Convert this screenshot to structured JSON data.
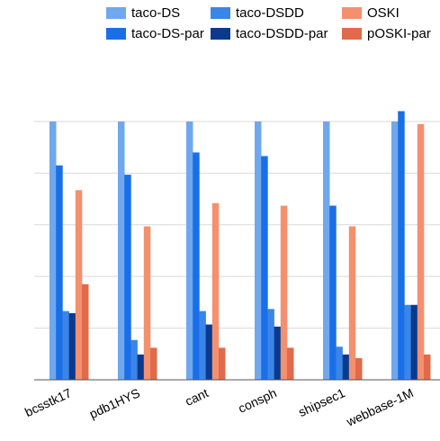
{
  "chart_data": {
    "type": "bar",
    "categories": [
      "bcsstk17",
      "pdb1HYS",
      "cant",
      "consph",
      "shipsec1",
      "webbase-1M"
    ],
    "series": [
      {
        "name": "taco-DS",
        "color": "#6fa8ee",
        "values": [
          5.0,
          5.0,
          5.0,
          5.0,
          5.0,
          5.0
        ]
      },
      {
        "name": "taco-DS-par",
        "color": "#1a6fe8",
        "values": [
          4.15,
          3.97,
          4.4,
          4.33,
          3.37,
          5.2
        ]
      },
      {
        "name": "taco-DSDD",
        "color": "#3a86e8",
        "values": [
          1.33,
          0.77,
          1.33,
          1.37,
          0.64,
          1.45
        ]
      },
      {
        "name": "taco-DSDD-par",
        "color": "#0a3a8e",
        "values": [
          1.29,
          0.49,
          1.07,
          1.03,
          0.49,
          1.45
        ]
      },
      {
        "name": "OSKI",
        "color": "#f4906e",
        "values": [
          3.67,
          2.97,
          3.42,
          3.37,
          2.97,
          4.95
        ]
      },
      {
        "name": "pOSKI-par",
        "color": "#e06a4a",
        "values": [
          1.85,
          0.62,
          0.62,
          0.62,
          0.42,
          0.49
        ]
      }
    ],
    "bar_order": [
      "taco-DS",
      "taco-DS-par",
      "taco-DSDD",
      "taco-DSDD-par",
      "OSKI",
      "pOSKI-par"
    ],
    "legend_order": [
      "taco-DS",
      "taco-DSDD",
      "OSKI",
      "taco-DS-par",
      "taco-DSDD-par",
      "pOSKI-par"
    ],
    "ylim": [
      0,
      5.4
    ],
    "grid": true,
    "legend_position": "top",
    "title": "",
    "xlabel": "",
    "ylabel": ""
  }
}
